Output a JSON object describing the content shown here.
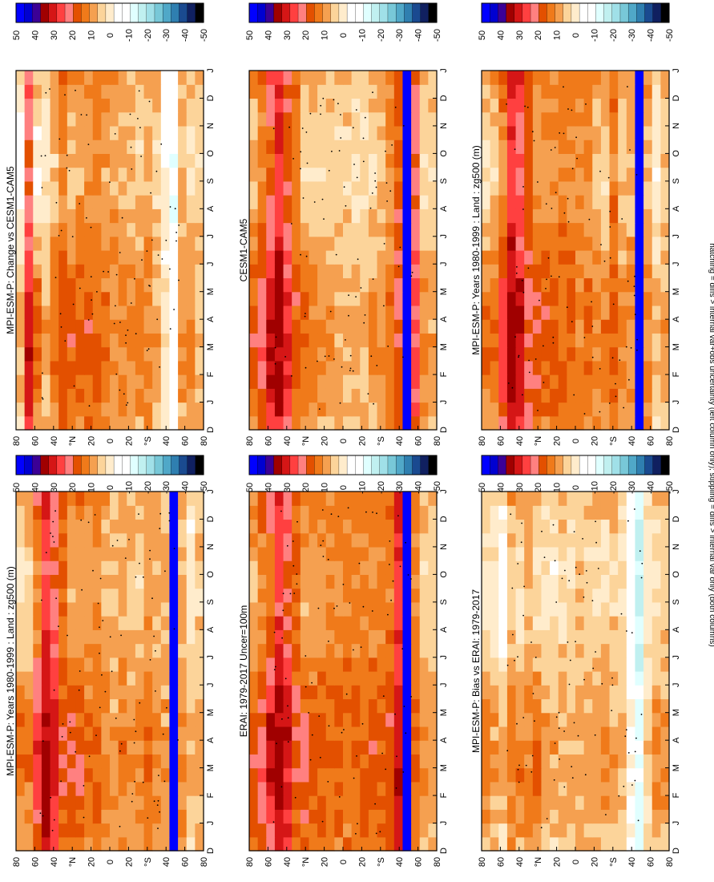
{
  "figure": {
    "footnote": "hatching = diffs > internal var+obs uncertainty (left column only); stippling = diffs > internal var only (both columns)",
    "month_labels": [
      "D",
      "J",
      "F",
      "M",
      "A",
      "M",
      "J",
      "J",
      "A",
      "S",
      "O",
      "N",
      "D",
      "J"
    ],
    "lat_labels": [
      "80",
      "60",
      "40",
      "°N",
      "20",
      "0",
      "20",
      "°S",
      "40",
      "60",
      "80"
    ],
    "colorbar_ticks": [
      "50",
      "40",
      "30",
      "20",
      "10",
      "0",
      "-10",
      "-20",
      "-30",
      "-40",
      "-50"
    ],
    "palette": [
      "#0000ff",
      "#0000d0",
      "#3b0096",
      "#a00000",
      "#d51616",
      "#ff4040",
      "#ff8080",
      "#e35000",
      "#f07a1a",
      "#f5a050",
      "#fcd49a",
      "#ffeccc",
      "#ffffff",
      "#ffffff",
      "#e0ffff",
      "#c0f0f0",
      "#a0e0e8",
      "#78c8d8",
      "#50a8c8",
      "#2f7fb0",
      "#1a4a90",
      "#102060",
      "#000000"
    ]
  },
  "chart_data": [
    {
      "type": "heatmap",
      "title": "MPI-ESM-P: Years 1980-1999 : Land : zg500 (m)",
      "variable": "zg500",
      "units": "m",
      "x": [
        "D",
        "J",
        "F",
        "M",
        "A",
        "M",
        "J",
        "J",
        "A",
        "S",
        "O",
        "N",
        "D",
        "J"
      ],
      "y": [
        "80N",
        "60N",
        "40N",
        "20N",
        "0",
        "20S",
        "40S",
        "60S",
        "80S"
      ],
      "colorbar_range": [
        -50,
        50
      ],
      "colorbar_step": 5,
      "profile": [
        4,
        6,
        16,
        30,
        26,
        16,
        12,
        10,
        10,
        11,
        10,
        8,
        9,
        6,
        5,
        12,
        4,
        5,
        52,
        6,
        -2,
        3
      ],
      "grid": false,
      "legend": "colorbar-top"
    },
    {
      "type": "heatmap",
      "title": "MPI-ESM-P: Years 1980-1999 : Land : zg500 (m)",
      "variable": "zg500",
      "units": "m",
      "x": [
        "D",
        "J",
        "F",
        "M",
        "A",
        "M",
        "J",
        "J",
        "A",
        "S",
        "O",
        "N",
        "D",
        "J"
      ],
      "y": [
        "80N",
        "60N",
        "40N",
        "20N",
        "0",
        "20S",
        "40S",
        "60S",
        "80S"
      ],
      "colorbar_range": [
        -50,
        50
      ],
      "colorbar_step": 5,
      "profile": [
        4,
        5,
        16,
        30,
        24,
        14,
        10,
        10,
        8,
        9,
        6,
        4,
        7,
        4,
        3,
        8,
        5,
        4,
        52,
        6,
        -2,
        3
      ],
      "grid": false,
      "legend": "colorbar-top"
    },
    {
      "type": "heatmap",
      "title": "ERAI: 1979-2017 Uncer=100m",
      "variable": "zg500",
      "units": "m",
      "x": [
        "D",
        "J",
        "F",
        "M",
        "A",
        "M",
        "J",
        "J",
        "A",
        "S",
        "O",
        "N",
        "D",
        "J"
      ],
      "y": [
        "80N",
        "60N",
        "40N",
        "20N",
        "0",
        "20S",
        "40S",
        "60S",
        "80S"
      ],
      "colorbar_range": [
        -50,
        50
      ],
      "colorbar_step": 5,
      "profile": [
        10,
        14,
        22,
        30,
        24,
        14,
        11,
        10,
        10,
        10,
        10,
        10,
        10,
        10,
        11,
        11,
        14,
        28,
        52,
        10,
        4,
        3
      ],
      "grid": false,
      "legend": "colorbar-top"
    },
    {
      "type": "heatmap",
      "title": "CESM1-CAM5",
      "variable": "zg500",
      "units": "m",
      "x": [
        "D",
        "J",
        "F",
        "M",
        "A",
        "M",
        "J",
        "J",
        "A",
        "S",
        "O",
        "N",
        "D",
        "J"
      ],
      "y": [
        "80N",
        "60N",
        "40N",
        "20N",
        "0",
        "20S",
        "40S",
        "60S",
        "80S"
      ],
      "colorbar_range": [
        -50,
        50
      ],
      "colorbar_step": 5,
      "profile": [
        8,
        14,
        24,
        30,
        22,
        12,
        6,
        4,
        3,
        3,
        2,
        1,
        1,
        1,
        3,
        5,
        9,
        16,
        52,
        20,
        4,
        2
      ],
      "grid": false,
      "legend": "colorbar-top"
    },
    {
      "type": "heatmap",
      "title": "MPI-ESM-P: Bias vs ERAI: 1979-2017",
      "variable": "zg500",
      "units": "m",
      "x": [
        "D",
        "J",
        "F",
        "M",
        "A",
        "M",
        "J",
        "J",
        "A",
        "S",
        "O",
        "N",
        "D",
        "J"
      ],
      "y": [
        "80N",
        "60N",
        "40N",
        "20N",
        "0",
        "20S",
        "40S",
        "60S",
        "80S"
      ],
      "colorbar_range": [
        -50,
        50
      ],
      "colorbar_step": 5,
      "profile": [
        3,
        0,
        -4,
        6,
        4,
        6,
        4,
        1,
        0,
        1,
        1,
        2,
        1,
        2,
        3,
        2,
        0,
        -10,
        -20,
        -2,
        2,
        3
      ],
      "grid": false,
      "legend": "colorbar-top"
    },
    {
      "type": "heatmap",
      "title": "MPI-ESM-P: Change vs CESM1-CAM5",
      "variable": "zg500",
      "units": "m",
      "x": [
        "D",
        "J",
        "F",
        "M",
        "A",
        "M",
        "J",
        "J",
        "A",
        "S",
        "O",
        "N",
        "D",
        "J"
      ],
      "y": [
        "80N",
        "60N",
        "40N",
        "20N",
        "0",
        "20S",
        "40S",
        "60S",
        "80S"
      ],
      "colorbar_range": [
        -50,
        50
      ],
      "colorbar_step": 5,
      "profile": [
        -2,
        24,
        4,
        1,
        6,
        12,
        8,
        9,
        10,
        10,
        8,
        6,
        6,
        5,
        5,
        6,
        2,
        -6,
        -14,
        4,
        3,
        2
      ],
      "grid": false,
      "legend": "colorbar-top"
    }
  ]
}
